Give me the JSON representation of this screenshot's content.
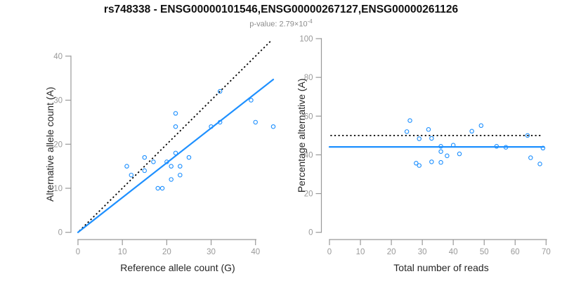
{
  "header": {
    "title": "rs748338 - ENSG00000101546,ENSG00000267127,ENSG00000261126",
    "p_label": "p-value: 2.79×10",
    "p_exponent": "-4"
  },
  "colors": {
    "accent_blue": "#1E90FF",
    "reference_black": "#000000",
    "axis_gray": "#999999",
    "tick_label_gray": "#999999",
    "axis_title_dark": "#262626",
    "title_black": "#111111",
    "subtitle_gray": "#8c8c8c",
    "background": "#ffffff"
  },
  "chart_data": [
    {
      "type": "scatter",
      "name": "allele-counts",
      "xlabel": "Reference allele count (G)",
      "ylabel": "Alternative allele count (A)",
      "xlim": [
        0,
        44
      ],
      "ylim": [
        0,
        43.6
      ],
      "xticks": [
        0,
        10,
        20,
        30,
        40
      ],
      "yticks": [
        0,
        10,
        20,
        30,
        40
      ],
      "grid": false,
      "legend": "none",
      "points": [
        [
          11,
          15
        ],
        [
          12,
          13
        ],
        [
          15,
          14
        ],
        [
          15,
          17
        ],
        [
          17,
          16
        ],
        [
          18,
          10
        ],
        [
          19,
          10
        ],
        [
          20,
          16
        ],
        [
          21,
          12
        ],
        [
          21,
          15
        ],
        [
          22,
          18
        ],
        [
          22,
          24
        ],
        [
          22,
          27
        ],
        [
          23,
          13
        ],
        [
          23,
          15
        ],
        [
          25,
          17
        ],
        [
          30,
          24
        ],
        [
          32,
          25
        ],
        [
          32,
          32
        ],
        [
          39,
          30
        ],
        [
          40,
          25
        ],
        [
          44,
          24
        ]
      ],
      "lines": [
        {
          "name": "identity-line",
          "meaning": "y = x expected 1:1 ratio",
          "style": "dotted",
          "color": "#000000",
          "x1": 0.3,
          "y1": 0.3,
          "x2": 43.6,
          "y2": 43.6
        },
        {
          "name": "fit-line",
          "meaning": "fitted allelic ratio (slope 0.79)",
          "style": "solid",
          "color": "#1E90FF",
          "x1": 0,
          "y1": 0,
          "x2": 44,
          "y2": 34.7
        }
      ]
    },
    {
      "type": "scatter",
      "name": "percentage-vs-coverage",
      "xlabel": "Total number of reads",
      "ylabel": "Percentage alternative (A)",
      "xlim": [
        0,
        70
      ],
      "ylim": [
        0,
        100
      ],
      "xticks": [
        0,
        10,
        20,
        30,
        40,
        50,
        60,
        70
      ],
      "yticks": [
        0,
        20,
        40,
        60,
        80,
        100
      ],
      "grid": false,
      "legend": "none",
      "points": [
        [
          25,
          52.0
        ],
        [
          26,
          57.7
        ],
        [
          28,
          35.7
        ],
        [
          29,
          34.5
        ],
        [
          29,
          48.3
        ],
        [
          32,
          53.1
        ],
        [
          33,
          36.4
        ],
        [
          33,
          48.5
        ],
        [
          36,
          36.1
        ],
        [
          36,
          41.7
        ],
        [
          36,
          44.4
        ],
        [
          38,
          39.5
        ],
        [
          40,
          45.0
        ],
        [
          42,
          40.5
        ],
        [
          46,
          52.2
        ],
        [
          49,
          55.1
        ],
        [
          54,
          44.4
        ],
        [
          57,
          43.9
        ],
        [
          64,
          50.0
        ],
        [
          65,
          38.5
        ],
        [
          68,
          35.3
        ],
        [
          69,
          43.5
        ]
      ],
      "lines": [
        {
          "name": "expected-50-line",
          "meaning": "expected 50% alternative",
          "style": "dotted",
          "color": "#000000",
          "x1": 0.3,
          "y1": 50,
          "x2": 68.3,
          "y2": 50
        },
        {
          "name": "mean-percentage-line",
          "meaning": "observed mean percentage 44.1",
          "style": "solid",
          "color": "#1E90FF",
          "x1": 0,
          "y1": 44.1,
          "x2": 69.3,
          "y2": 44.1
        }
      ]
    }
  ]
}
